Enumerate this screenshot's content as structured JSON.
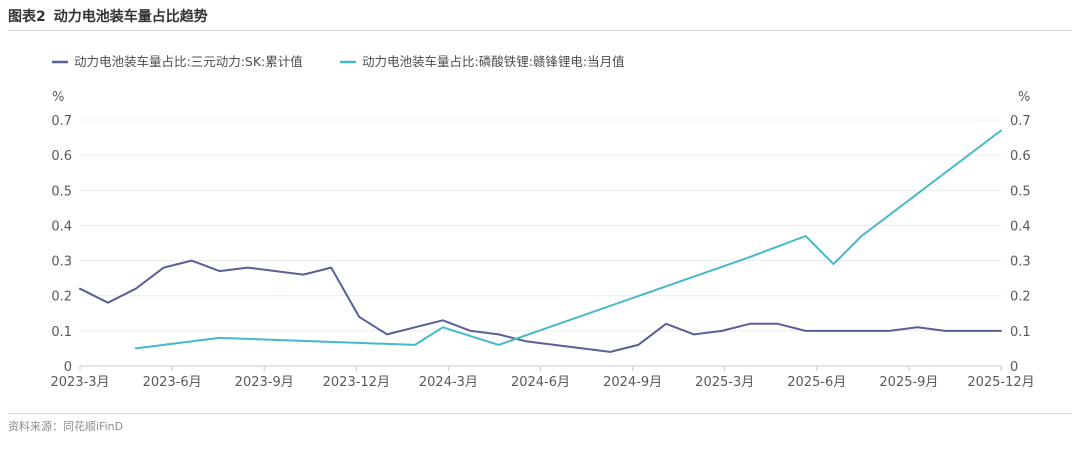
{
  "figure": {
    "number": "图表2",
    "title": "动力电池装车量占比趋势",
    "source": "资料来源：同花顺iFinD"
  },
  "colors": {
    "series1": "#5b5f97",
    "series2": "#45b8cc",
    "grid": "#ececec",
    "axis": "#c8c8c8"
  },
  "chart_data": {
    "type": "line",
    "x_tick_labels": [
      "2023-3月",
      "2023-6月",
      "2023-9月",
      "2023-12月",
      "2024-3月",
      "2024-6月",
      "2024-9月",
      "2025-3月",
      "2025-6月",
      "2025-9月",
      "2025-12月"
    ],
    "ylabel_left": "%",
    "ylabel_right": "%",
    "ylim": [
      0,
      0.7
    ],
    "yticks": [
      0,
      0.1,
      0.2,
      0.3,
      0.4,
      0.5,
      0.6,
      0.7
    ],
    "ytick_labels": [
      "0",
      "0.1",
      "0.2",
      "0.3",
      "0.4",
      "0.5",
      "0.6",
      "0.7"
    ],
    "grid": true,
    "legend": "top-left",
    "series": [
      {
        "name": "动力电池装车量占比:三元动力:SK:累计值",
        "color": "#5b5f97",
        "x": [
          "2023-3",
          "2023-4",
          "2023-5",
          "2023-6",
          "2023-7",
          "2023-8",
          "2023-9",
          "2023-11",
          "2023-12",
          "2024-1",
          "2024-2",
          "2024-3",
          "2024-4",
          "2024-5",
          "2024-6",
          "2024-7",
          "2024-10",
          "2024-11",
          "2024-12",
          "2025-1",
          "2025-2",
          "2025-3",
          "2025-4",
          "2025-5",
          "2025-7",
          "2025-8",
          "2025-9",
          "2025-10",
          "2025-11",
          "2025-12"
        ],
        "values": [
          0.22,
          0.18,
          0.22,
          0.28,
          0.3,
          0.27,
          0.28,
          0.26,
          0.28,
          0.14,
          0.09,
          0.11,
          0.13,
          0.1,
          0.09,
          0.07,
          0.04,
          0.06,
          0.12,
          0.09,
          0.1,
          0.12,
          0.12,
          0.1,
          0.1,
          0.1,
          0.11,
          0.1,
          0.1,
          0.1
        ]
      },
      {
        "name": "动力电池装车量占比:磷酸铁锂:赣锋锂电:当月值",
        "color": "#45b8cc",
        "x": [
          "2023-5",
          "2023-8",
          "2024-3",
          "2024-4",
          "2024-6",
          "2025-3",
          "2025-5",
          "2025-6",
          "2025-7",
          "2025-12"
        ],
        "values": [
          0.05,
          0.08,
          0.06,
          0.11,
          0.06,
          0.31,
          0.37,
          0.29,
          0.37,
          0.67
        ]
      }
    ]
  }
}
